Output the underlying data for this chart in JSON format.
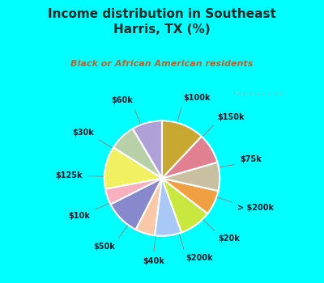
{
  "title": "Income distribution in Southeast\nHarris, TX (%)",
  "subtitle": "Black or African American residents",
  "bg_top_color": "#00ffff",
  "chart_bg_color": "#e0f5ee",
  "title_color": "#1a2a2a",
  "subtitle_color": "#c06030",
  "watermark": "City-Data.com",
  "labels": [
    "$100k",
    "$150k",
    "$75k",
    "> $200k",
    "$20k",
    "$200k",
    "$40k",
    "$50k",
    "$10k",
    "$125k",
    "$30k",
    "$60k"
  ],
  "sizes": [
    8.5,
    7.5,
    12,
    4.5,
    10,
    5.5,
    7.5,
    9,
    7,
    8,
    8.5,
    12
  ],
  "colors": [
    "#b0a0d8",
    "#b8d0a8",
    "#f0f060",
    "#f8b0c0",
    "#8888cc",
    "#f8c8a8",
    "#a8c8f8",
    "#c8e840",
    "#f0a040",
    "#c8c0a0",
    "#e08090",
    "#c8a830"
  ],
  "wedge_edge_color": "white",
  "label_color": "#1a1a2a",
  "label_fontsize": 7.0,
  "startangle": 90
}
